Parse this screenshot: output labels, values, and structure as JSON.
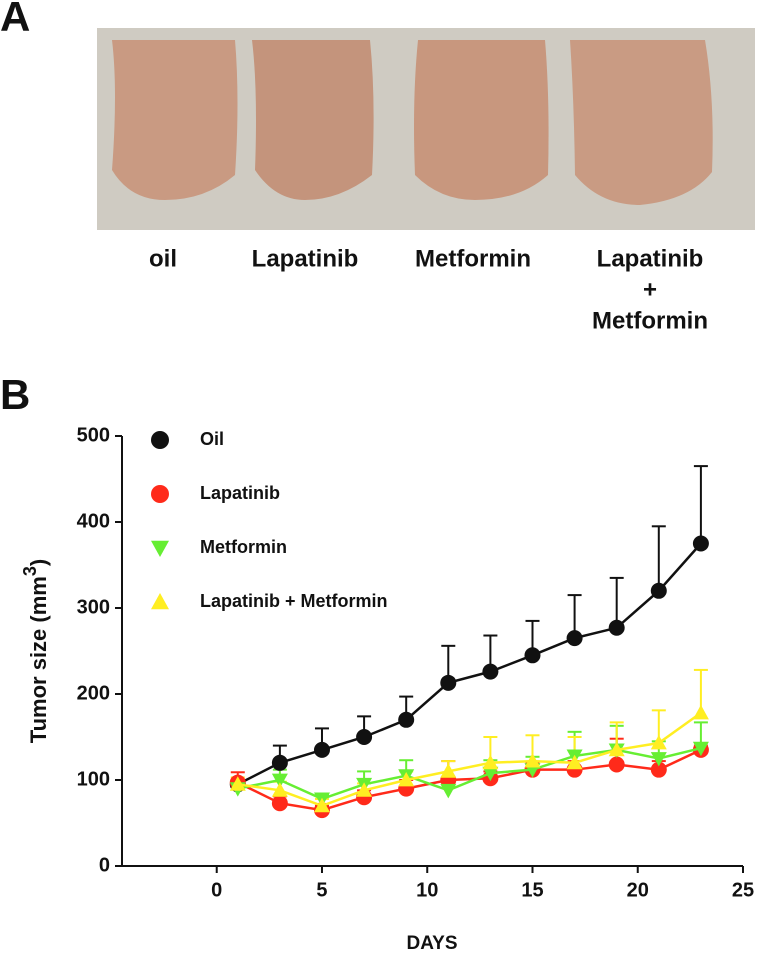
{
  "panel_labels": [
    "A",
    "B"
  ],
  "photo_labels": [
    {
      "lines": [
        "oil"
      ]
    },
    {
      "lines": [
        "Lapatinib"
      ]
    },
    {
      "lines": [
        "Metformin"
      ]
    },
    {
      "lines": [
        "Lapatinib",
        "+",
        "Metformin"
      ]
    }
  ],
  "chart_data": {
    "type": "line",
    "x": [
      1,
      3,
      5,
      7,
      9,
      11,
      13,
      15,
      17,
      19,
      21,
      23
    ],
    "series": [
      {
        "name": "Oil",
        "color": "#111111",
        "marker": "circle",
        "values": [
          95,
          120,
          135,
          150,
          170,
          213,
          226,
          245,
          265,
          277,
          320,
          375
        ],
        "errors": [
          5,
          20,
          25,
          24,
          27,
          43,
          42,
          40,
          50,
          58,
          75,
          90
        ]
      },
      {
        "name": "Lapatinib",
        "color": "#ff2a1a",
        "marker": "circle",
        "values": [
          97,
          73,
          65,
          80,
          90,
          100,
          102,
          112,
          112,
          118,
          112,
          135
        ],
        "errors": [
          12,
          8,
          5,
          8,
          10,
          22,
          8,
          8,
          10,
          30,
          10,
          5
        ]
      },
      {
        "name": "Metformin",
        "color": "#66ee33",
        "marker": "triangle-down",
        "values": [
          90,
          100,
          78,
          95,
          105,
          88,
          108,
          112,
          128,
          135,
          125,
          137
        ],
        "errors": [
          10,
          12,
          5,
          15,
          18,
          10,
          15,
          15,
          28,
          28,
          20,
          30
        ]
      },
      {
        "name": "Lapatinib + Metformin",
        "color": "#ffee22",
        "marker": "triangle-up",
        "values": [
          95,
          88,
          70,
          88,
          100,
          110,
          120,
          122,
          120,
          135,
          143,
          178
        ],
        "errors": [
          8,
          10,
          8,
          8,
          10,
          12,
          30,
          30,
          30,
          32,
          38,
          50
        ]
      }
    ],
    "xlabel": "DAYS",
    "ylabel": [
      "Tumor size (mm",
      "3",
      ")"
    ],
    "xlim": [
      -4.5,
      25
    ],
    "xticks": [
      0,
      5,
      10,
      15,
      20,
      25
    ],
    "ylim": [
      0,
      500
    ],
    "yticks": [
      0,
      100,
      200,
      300,
      400,
      500
    ],
    "legend": "top-left"
  }
}
